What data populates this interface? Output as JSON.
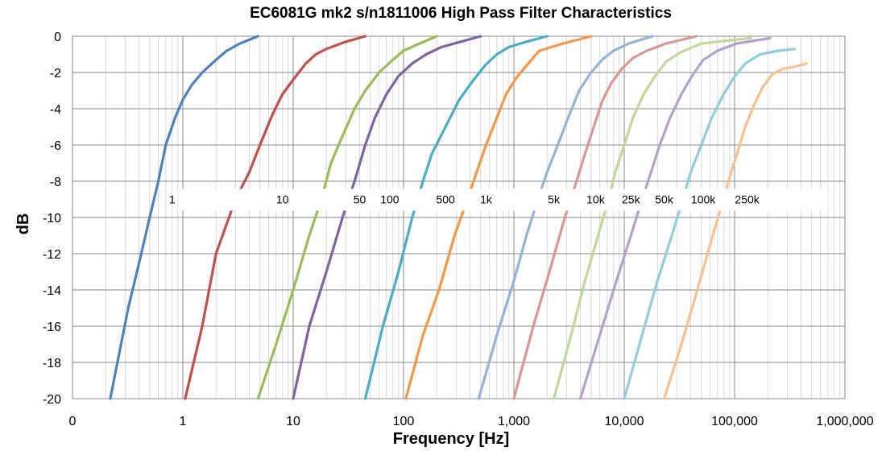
{
  "chart_data": {
    "type": "line",
    "title": "EC6081G mk2 s/n1811006 High Pass Filter Characteristics",
    "xlabel": "Frequency [Hz]",
    "ylabel": "dB",
    "xscale": "log",
    "xlim": [
      0.1,
      1000000
    ],
    "ylim": [
      -20,
      0
    ],
    "grid": true,
    "x_tick_values": [
      0.1,
      1,
      10,
      100,
      1000,
      10000,
      100000,
      1000000
    ],
    "x_tick_labels": [
      "0",
      "1",
      "10",
      "100",
      "1,000",
      "10,000",
      "100,000",
      "1,000,000"
    ],
    "y_tick_values": [
      0,
      -2,
      -4,
      -6,
      -8,
      -10,
      -12,
      -14,
      -16,
      -18,
      -20
    ],
    "y_tick_labels": [
      "0",
      "-2",
      "-4",
      "-6",
      "-8",
      "-10",
      "-12",
      "-14",
      "-16",
      "-18",
      "-20"
    ],
    "series": [
      {
        "name": "1",
        "color": "#4F81BD",
        "label_x": 0.8,
        "x": [
          0.22,
          0.32,
          0.42,
          0.5,
          0.6,
          0.7,
          0.85,
          1.0,
          1.2,
          1.5,
          2.0,
          2.5,
          3.3,
          4.8
        ],
        "y": [
          -20,
          -15,
          -12,
          -10,
          -8,
          -6,
          -4.5,
          -3.5,
          -2.7,
          -2.0,
          -1.3,
          -0.8,
          -0.4,
          0
        ]
      },
      {
        "name": "10",
        "color": "#C0504D",
        "label_x": 8,
        "x": [
          1.05,
          1.5,
          2.0,
          3.0,
          4.0,
          5.0,
          6.5,
          8.0,
          10.0,
          13.0,
          16.0,
          20.0,
          30.0,
          45.0
        ],
        "y": [
          -20,
          -16,
          -12,
          -9,
          -7.5,
          -6,
          -4.3,
          -3.2,
          -2.4,
          -1.5,
          -1.0,
          -0.7,
          -0.3,
          0
        ]
      },
      {
        "name": "50",
        "color": "#9BBB59",
        "label_x": 40,
        "x": [
          4.8,
          7.0,
          10.0,
          14.0,
          18.0,
          22.0,
          28.0,
          36.0,
          45.0,
          60.0,
          80.0,
          100.0,
          140.0,
          200.0
        ],
        "y": [
          -20,
          -17,
          -14,
          -11,
          -9,
          -7,
          -5.5,
          -4,
          -3,
          -2,
          -1.3,
          -0.8,
          -0.4,
          0
        ]
      },
      {
        "name": "100",
        "color": "#8064A2",
        "label_x": 75,
        "x": [
          10.0,
          14.0,
          20.0,
          28.0,
          36.0,
          45.0,
          55.0,
          70.0,
          90.0,
          120.0,
          160.0,
          220.0,
          330.0,
          500.0
        ],
        "y": [
          -20,
          -16,
          -13,
          -10,
          -8,
          -6,
          -4.5,
          -3.2,
          -2.2,
          -1.5,
          -1.0,
          -0.6,
          -0.3,
          0
        ]
      },
      {
        "name": "500",
        "color": "#4BACC6",
        "label_x": 240,
        "x": [
          45.0,
          65.0,
          90.0,
          120.0,
          150.0,
          180.0,
          240.0,
          320.0,
          420.0,
          550.0,
          700.0,
          900.0,
          1300.0,
          2000.0
        ],
        "y": [
          -20,
          -16,
          -13,
          -10,
          -8,
          -6.5,
          -5,
          -3.5,
          -2.5,
          -1.6,
          -1.0,
          -0.6,
          -0.3,
          0
        ]
      },
      {
        "name": "1k",
        "color": "#F79646",
        "label_x": 560,
        "x": [
          105.0,
          150.0,
          210.0,
          290.0,
          380.0,
          460.0,
          560.0,
          700.0,
          850.0,
          1050.0,
          1350.0,
          1700.0,
          2800.0,
          5000.0
        ],
        "y": [
          -20,
          -16.5,
          -14,
          -11,
          -9,
          -7.5,
          -6,
          -4.5,
          -3.2,
          -2.3,
          -1.5,
          -0.8,
          -0.4,
          0
        ]
      },
      {
        "name": "5k",
        "color": "#95B3D7",
        "label_x": 2300,
        "x": [
          480.0,
          700.0,
          1000.0,
          1300.0,
          1650.0,
          2000.0,
          2500.0,
          3100.0,
          3900.0,
          5000.0,
          6300.0,
          8000.0,
          11000.0,
          18000.0
        ],
        "y": [
          -20,
          -16.5,
          -13.5,
          -11,
          -9,
          -7.5,
          -6,
          -4.5,
          -3,
          -2,
          -1.3,
          -0.8,
          -0.4,
          0
        ]
      },
      {
        "name": "10k",
        "color": "#D99694",
        "label_x": 5500,
        "x": [
          1000.0,
          1500.0,
          2100.0,
          2900.0,
          3700.0,
          4400.0,
          5300.0,
          6300.0,
          7600.0,
          9500.0,
          12000.0,
          16000.0,
          24000.0,
          45000.0
        ],
        "y": [
          -20,
          -16,
          -13,
          -10,
          -8,
          -6.5,
          -5,
          -3.6,
          -2.6,
          -1.8,
          -1.2,
          -0.8,
          -0.4,
          0
        ]
      },
      {
        "name": "25k",
        "color": "#C3D69B",
        "label_x": 11500,
        "x": [
          2300.0,
          3300.0,
          4400.0,
          5800.0,
          7200.0,
          8300.0,
          10000.0,
          12000.0,
          15000.0,
          19000.0,
          24000.0,
          32000.0,
          50000.0,
          140000.0
        ],
        "y": [
          -20,
          -16.5,
          -13.5,
          -11,
          -9,
          -7.5,
          -6,
          -4.5,
          -3.2,
          -2.2,
          -1.4,
          -0.9,
          -0.4,
          -0.1
        ]
      },
      {
        "name": "50k",
        "color": "#B3A2C7",
        "label_x": 23000,
        "x": [
          4000.0,
          6000.0,
          8500.0,
          11500.0,
          14500.0,
          17500.0,
          21000.0,
          26000.0,
          33000.0,
          41000.0,
          52000.0,
          70000.0,
          105000.0,
          210000.0
        ],
        "y": [
          -20,
          -16.5,
          -13.5,
          -11,
          -9,
          -7.5,
          -6,
          -4.5,
          -3.2,
          -2.2,
          -1.3,
          -0.8,
          -0.4,
          -0.1
        ]
      },
      {
        "name": "100k",
        "color": "#92CDDC",
        "label_x": 52000,
        "x": [
          10000.0,
          14500.0,
          20000.0,
          27000.0,
          34000.0,
          40000.0,
          50000.0,
          62000.0,
          78000.0,
          98000.0,
          125000.0,
          170000.0,
          250000.0,
          350000.0
        ],
        "y": [
          -20,
          -16.5,
          -13.5,
          -11,
          -9,
          -7.5,
          -6,
          -4.5,
          -3.3,
          -2.3,
          -1.5,
          -1.0,
          -0.8,
          -0.7
        ]
      },
      {
        "name": "250k",
        "color": "#FAC090",
        "label_x": 130000,
        "x": [
          23000.0,
          33000.0,
          46000.0,
          60000.0,
          75000.0,
          88000.0,
          105000.0,
          125000.0,
          150000.0,
          180000.0,
          220000.0,
          270000.0,
          340000.0,
          450000.0
        ],
        "y": [
          -20,
          -17,
          -14,
          -11.5,
          -9.5,
          -8,
          -6.5,
          -5,
          -3.8,
          -2.8,
          -2.1,
          -1.8,
          -1.7,
          -1.5
        ]
      }
    ]
  }
}
